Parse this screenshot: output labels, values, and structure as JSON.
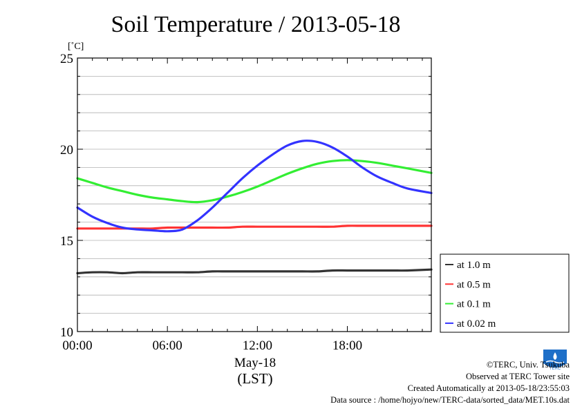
{
  "chart_data": {
    "type": "line",
    "title": "Soil Temperature / 2013-05-18",
    "ylabel": "[˚C]",
    "ylim": [
      10,
      25
    ],
    "yticks": [
      10,
      15,
      20,
      25
    ],
    "xlim": [
      0,
      23.6
    ],
    "xticks": [
      {
        "value": 0,
        "label": "00:00"
      },
      {
        "value": 6,
        "label": "06:00"
      },
      {
        "value": 12,
        "label": "12:00"
      },
      {
        "value": 18,
        "label": "18:00"
      }
    ],
    "xlabel_date": "May-18",
    "xlabel_unit": "(LST)",
    "grid": true,
    "legend_position": "right",
    "series": [
      {
        "name": "at 1.0 m",
        "color": "#333333",
        "x": [
          0,
          1,
          2,
          3,
          4,
          5,
          6,
          7,
          8,
          9,
          10,
          11,
          12,
          13,
          14,
          15,
          16,
          17,
          18,
          19,
          20,
          21,
          22,
          23.6
        ],
        "y": [
          13.2,
          13.25,
          13.25,
          13.2,
          13.25,
          13.25,
          13.25,
          13.25,
          13.25,
          13.3,
          13.3,
          13.3,
          13.3,
          13.3,
          13.3,
          13.3,
          13.3,
          13.35,
          13.35,
          13.35,
          13.35,
          13.35,
          13.35,
          13.4
        ]
      },
      {
        "name": "at 0.5 m",
        "color": "#ff3333",
        "x": [
          0,
          1,
          2,
          3,
          4,
          5,
          6,
          7,
          8,
          9,
          10,
          11,
          12,
          13,
          14,
          15,
          16,
          17,
          18,
          19,
          20,
          21,
          22,
          23.6
        ],
        "y": [
          15.65,
          15.65,
          15.65,
          15.65,
          15.65,
          15.65,
          15.7,
          15.7,
          15.7,
          15.7,
          15.7,
          15.75,
          15.75,
          15.75,
          15.75,
          15.75,
          15.75,
          15.75,
          15.8,
          15.8,
          15.8,
          15.8,
          15.8,
          15.8
        ]
      },
      {
        "name": "at 0.1 m",
        "color": "#33ee33",
        "x": [
          0,
          1,
          2,
          3,
          4,
          5,
          6,
          7,
          8,
          9,
          10,
          11,
          12,
          13,
          14,
          15,
          16,
          17,
          18,
          19,
          20,
          21,
          22,
          23.6
        ],
        "y": [
          18.4,
          18.15,
          17.9,
          17.7,
          17.5,
          17.35,
          17.25,
          17.15,
          17.1,
          17.2,
          17.4,
          17.65,
          17.95,
          18.3,
          18.65,
          18.95,
          19.2,
          19.35,
          19.4,
          19.35,
          19.25,
          19.1,
          18.95,
          18.7
        ]
      },
      {
        "name": "at 0.02 m",
        "color": "#3333ff",
        "x": [
          0,
          1,
          2,
          3,
          4,
          5,
          6,
          7,
          8,
          9,
          10,
          11,
          12,
          13,
          14,
          15,
          16,
          17,
          18,
          19,
          20,
          21,
          22,
          23.6
        ],
        "y": [
          16.8,
          16.3,
          15.95,
          15.7,
          15.6,
          15.55,
          15.5,
          15.6,
          16.1,
          16.8,
          17.6,
          18.4,
          19.1,
          19.7,
          20.2,
          20.45,
          20.4,
          20.1,
          19.6,
          19.0,
          18.5,
          18.15,
          17.85,
          17.6
        ]
      }
    ]
  },
  "footer": {
    "copyright": "©TERC, Univ. Tsukuba",
    "observed": "Observed at TERC Tower site",
    "created": "Created Automatically at 2013-05-18/23:55:03",
    "source": "Data source : /home/hojyo/new/TERC-data/sorted_data/MET.10s.dat"
  },
  "logo": {
    "text": "TERC",
    "color": "#1e6fc8",
    "icon": "terc-logo-icon"
  }
}
